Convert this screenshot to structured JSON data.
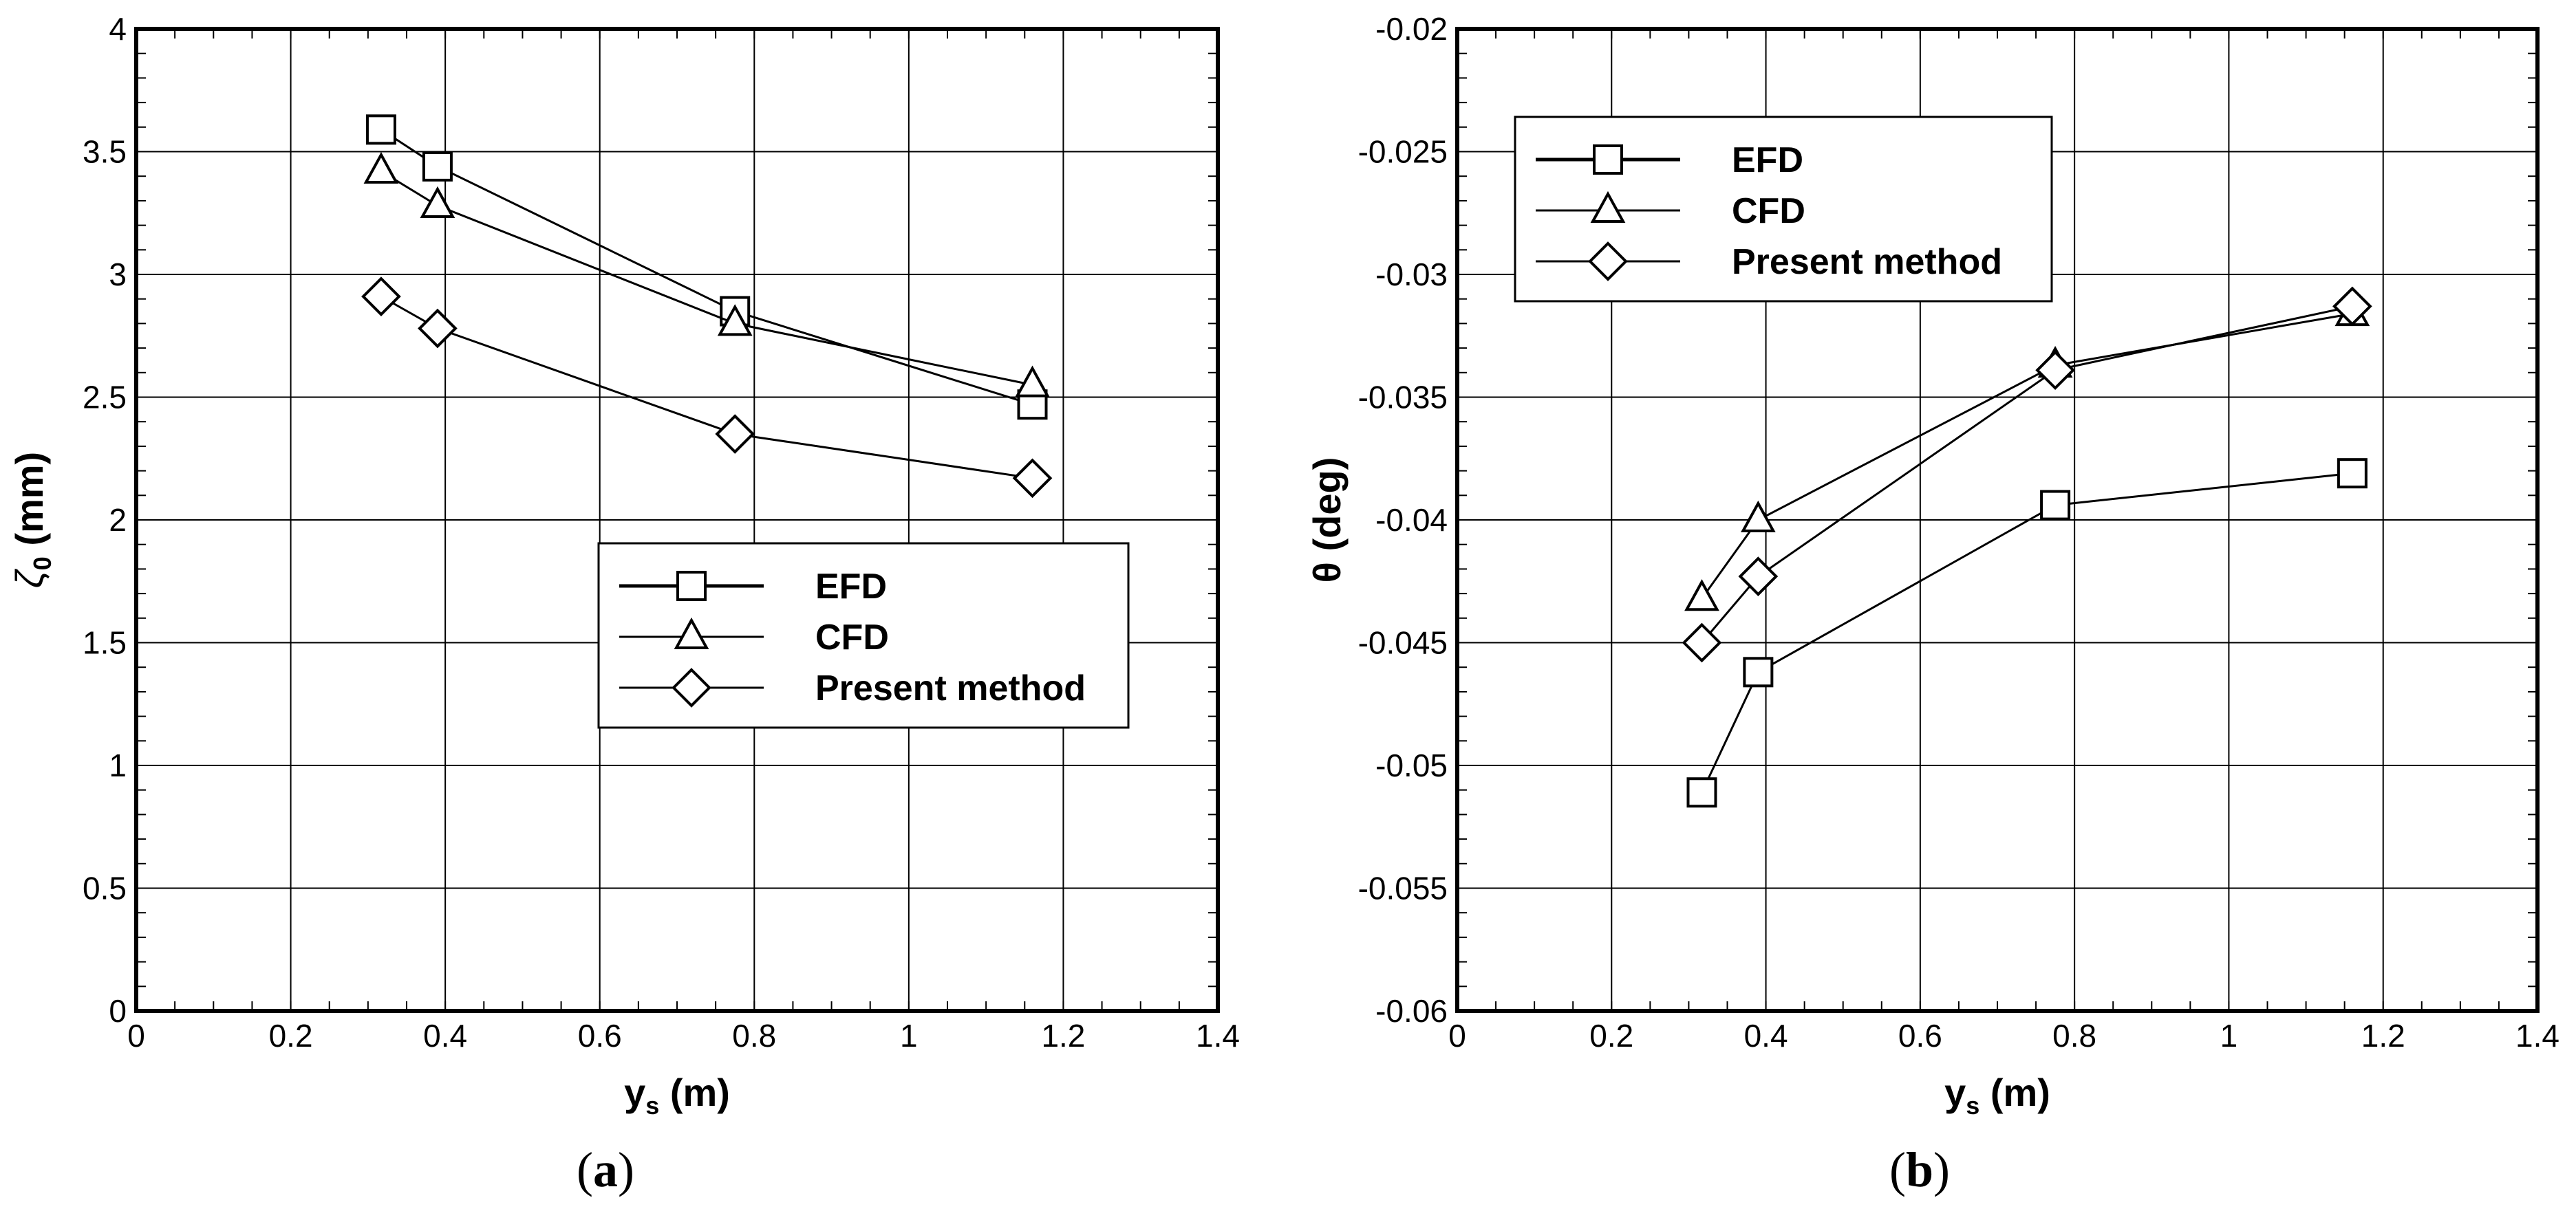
{
  "chart_data": [
    {
      "type": "line",
      "panel_label": "a",
      "xlabel": "y",
      "xlabel_sub": "s",
      "xlabel_unit": "(m)",
      "ylabel": "ζ",
      "ylabel_sub": "0",
      "ylabel_unit": "(mm)",
      "xlim": [
        0,
        1.4
      ],
      "ylim": [
        0,
        4
      ],
      "xticks": [
        "0",
        "0.2",
        "0.4",
        "0.6",
        "0.8",
        "1",
        "1.2",
        "1.4"
      ],
      "yticks": [
        "0",
        "0.5",
        "1",
        "1.5",
        "2",
        "2.5",
        "3",
        "3.5",
        "4"
      ],
      "grid": true,
      "legend_position": "lower-right",
      "series": [
        {
          "name": "EFD",
          "marker": "square",
          "x": [
            0.317,
            0.39,
            0.775,
            1.16
          ],
          "y": [
            3.59,
            3.44,
            2.85,
            2.47
          ]
        },
        {
          "name": "CFD",
          "marker": "triangle",
          "x": [
            0.317,
            0.39,
            0.775,
            1.16
          ],
          "y": [
            3.42,
            3.28,
            2.8,
            2.55
          ]
        },
        {
          "name": "Present method",
          "marker": "diamond",
          "x": [
            0.317,
            0.39,
            0.775,
            1.16
          ],
          "y": [
            2.91,
            2.78,
            2.35,
            2.17
          ]
        }
      ]
    },
    {
      "type": "line",
      "panel_label": "b",
      "xlabel": "y",
      "xlabel_sub": "s",
      "xlabel_unit": "(m)",
      "ylabel": "θ (deg)",
      "xlim": [
        0,
        1.4
      ],
      "ylim": [
        -0.06,
        -0.02
      ],
      "xticks": [
        "0",
        "0.2",
        "0.4",
        "0.6",
        "0.8",
        "1",
        "1.2",
        "1.4"
      ],
      "yticks": [
        "-0.06",
        "-0.055",
        "-0.05",
        "-0.045",
        "-0.04",
        "-0.035",
        "-0.03",
        "-0.025",
        "-0.02"
      ],
      "grid": true,
      "legend_position": "upper-left",
      "series": [
        {
          "name": "EFD",
          "marker": "square",
          "x": [
            0.317,
            0.39,
            0.775,
            1.16
          ],
          "y": [
            -0.0511,
            -0.0462,
            -0.0394,
            -0.0381
          ]
        },
        {
          "name": "CFD",
          "marker": "triangle",
          "x": [
            0.317,
            0.39,
            0.775,
            1.16
          ],
          "y": [
            -0.0432,
            -0.04,
            -0.0337,
            -0.0316
          ]
        },
        {
          "name": "Present method",
          "marker": "diamond",
          "x": [
            0.317,
            0.39,
            0.775,
            1.16
          ],
          "y": [
            -0.045,
            -0.0423,
            -0.0339,
            -0.0313
          ]
        }
      ]
    }
  ]
}
